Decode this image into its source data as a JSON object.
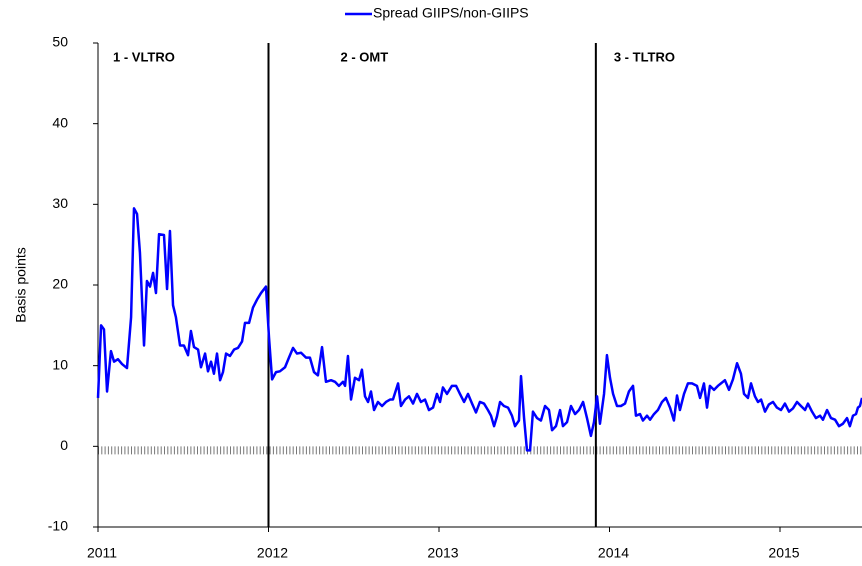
{
  "chart_data": {
    "type": "line",
    "y_label": "Basis points",
    "x": [
      2011.0,
      2011.018,
      2011.035,
      2011.053,
      2011.076,
      2011.094,
      2011.117,
      2011.141,
      2011.17,
      2011.194,
      2011.211,
      2011.229,
      2011.246,
      2011.27,
      2011.287,
      2011.305,
      2011.323,
      2011.34,
      2011.358,
      2011.387,
      2011.405,
      2011.422,
      2011.44,
      2011.457,
      2011.481,
      2011.504,
      2011.528,
      2011.545,
      2011.563,
      2011.587,
      2011.604,
      2011.628,
      2011.645,
      2011.663,
      2011.68,
      2011.698,
      2011.716,
      2011.733,
      2011.751,
      2011.774,
      2011.798,
      2011.821,
      2011.845,
      2011.862,
      2011.886,
      2011.909,
      2011.933,
      2011.956,
      2011.985,
      2012.003,
      2012.021,
      2012.044,
      2012.067,
      2012.097,
      2012.12,
      2012.144,
      2012.167,
      2012.191,
      2012.22,
      2012.243,
      2012.267,
      2012.29,
      2012.314,
      2012.337,
      2012.367,
      2012.39,
      2012.413,
      2012.437,
      2012.449,
      2012.466,
      2012.484,
      2012.507,
      2012.531,
      2012.548,
      2012.566,
      2012.584,
      2012.601,
      2012.619,
      2012.642,
      2012.666,
      2012.689,
      2012.713,
      2012.73,
      2012.76,
      2012.777,
      2012.801,
      2012.824,
      2012.848,
      2012.871,
      2012.894,
      2012.918,
      2012.941,
      2012.965,
      2012.988,
      2013.006,
      2013.023,
      2013.047,
      2013.076,
      2013.1,
      2013.123,
      2013.147,
      2013.17,
      2013.194,
      2013.217,
      2013.24,
      2013.264,
      2013.287,
      2013.305,
      2013.323,
      2013.34,
      2013.358,
      2013.381,
      2013.405,
      2013.428,
      2013.446,
      2013.469,
      2013.481,
      2013.499,
      2013.516,
      2013.534,
      2013.551,
      2013.575,
      2013.598,
      2013.622,
      2013.645,
      2013.663,
      2013.686,
      2013.71,
      2013.727,
      2013.751,
      2013.774,
      2013.798,
      2013.821,
      2013.845,
      2013.868,
      2013.891,
      2013.909,
      2013.927,
      2013.944,
      2013.968,
      2013.985,
      2014.003,
      2014.021,
      2014.044,
      2014.067,
      2014.091,
      2014.114,
      2014.138,
      2014.155,
      2014.179,
      2014.196,
      2014.22,
      2014.238,
      2014.261,
      2014.284,
      2014.308,
      2014.331,
      2014.355,
      2014.378,
      2014.396,
      2014.413,
      2014.437,
      2014.46,
      2014.484,
      2014.513,
      2014.531,
      2014.554,
      2014.572,
      2014.589,
      2014.613,
      2014.636,
      2014.654,
      2014.677,
      2014.701,
      2014.724,
      2014.748,
      2014.771,
      2014.789,
      2014.812,
      2014.83,
      2014.853,
      2014.871,
      2014.889,
      2014.912,
      2014.935,
      2014.959,
      2014.982,
      2015.006,
      2015.029,
      2015.053,
      2015.076,
      2015.1,
      2015.123,
      2015.147,
      2015.164,
      2015.188,
      2015.211,
      2015.235,
      2015.252,
      2015.276,
      2015.299,
      2015.323,
      2015.346,
      2015.369,
      2015.393,
      2015.41,
      2015.428,
      2015.446,
      2015.457,
      2015.469,
      2015.481
    ],
    "series": [
      {
        "name": "Spread GIIPS/non-GIIPS",
        "color": "#0000ff",
        "values": [
          6,
          15,
          14.5,
          6.8,
          11.8,
          10.5,
          10.8,
          10.2,
          9.7,
          16,
          29.5,
          28.8,
          24,
          12.5,
          20.5,
          19.8,
          21.5,
          19,
          26.3,
          26.2,
          19.5,
          26.7,
          17.5,
          16,
          12.5,
          12.5,
          11.3,
          14.3,
          12.3,
          12,
          9.8,
          11.5,
          9.3,
          10.5,
          9,
          11.5,
          8.2,
          9.2,
          11.5,
          11.2,
          12,
          12.2,
          13,
          15.3,
          15.3,
          17.2,
          18.2,
          19,
          19.8,
          13.5,
          8.3,
          9.2,
          9.3,
          9.8,
          11,
          12.2,
          11.5,
          11.6,
          11,
          11,
          9.2,
          8.8,
          12.3,
          8,
          8.2,
          8,
          7.5,
          8,
          7.5,
          11.2,
          5.8,
          8.5,
          8.2,
          9.5,
          6.2,
          5.5,
          6.8,
          4.5,
          5.5,
          5,
          5.5,
          5.8,
          5.8,
          7.8,
          5,
          5.8,
          6.2,
          5.3,
          6.5,
          5.5,
          5.8,
          4.5,
          4.8,
          6.5,
          5.5,
          7.3,
          6.5,
          7.5,
          7.5,
          6.5,
          5.5,
          6.5,
          5.3,
          4.2,
          5.5,
          5.3,
          4.5,
          3.8,
          2.5,
          3.7,
          5.5,
          5,
          4.8,
          3.8,
          2.5,
          3.2,
          8.7,
          3.5,
          -0.5,
          -0.5,
          4.3,
          3.5,
          3.2,
          5,
          4.5,
          2,
          2.5,
          4.5,
          2.5,
          3,
          5,
          4,
          4.5,
          5.5,
          3.5,
          1.3,
          3,
          6.2,
          2.8,
          6.5,
          11.3,
          8.5,
          6.5,
          5,
          5,
          5.3,
          6.8,
          7.5,
          3.8,
          4,
          3.2,
          3.8,
          3.3,
          4,
          4.5,
          5.5,
          6,
          4.8,
          3.2,
          6.3,
          4.5,
          6.5,
          7.8,
          7.8,
          7.5,
          6,
          7.8,
          4.8,
          7.5,
          7,
          7.5,
          7.8,
          8.2,
          7,
          8.3,
          10.3,
          9,
          6.5,
          6,
          7.8,
          6.2,
          5.5,
          5.8,
          4.3,
          5.2,
          5.5,
          4.8,
          4.5,
          5.3,
          4.3,
          4.7,
          5.5,
          5,
          4.5,
          5.3,
          4.3,
          3.5,
          3.8,
          3.3,
          4.5,
          3.5,
          3.3,
          2.5,
          2.8,
          3.5,
          2.5,
          3.8,
          4,
          4.8,
          5,
          6
        ]
      }
    ],
    "xlim": [
      2011,
      2015.481
    ],
    "xticks": [
      2011,
      2012,
      2013,
      2014,
      2015
    ],
    "ylim": [
      -10,
      50
    ],
    "yticks": [
      -10,
      0,
      10,
      20,
      30,
      40,
      50
    ],
    "vlines": [
      2012,
      2013.92
    ],
    "annotations": [
      {
        "label": "1 - VLTRO",
        "x": 2011
      },
      {
        "label": "2 - OMT",
        "x": 2012
      },
      {
        "label": "3 - TLTRO",
        "x": 2013.92
      }
    ],
    "legend": "top"
  }
}
